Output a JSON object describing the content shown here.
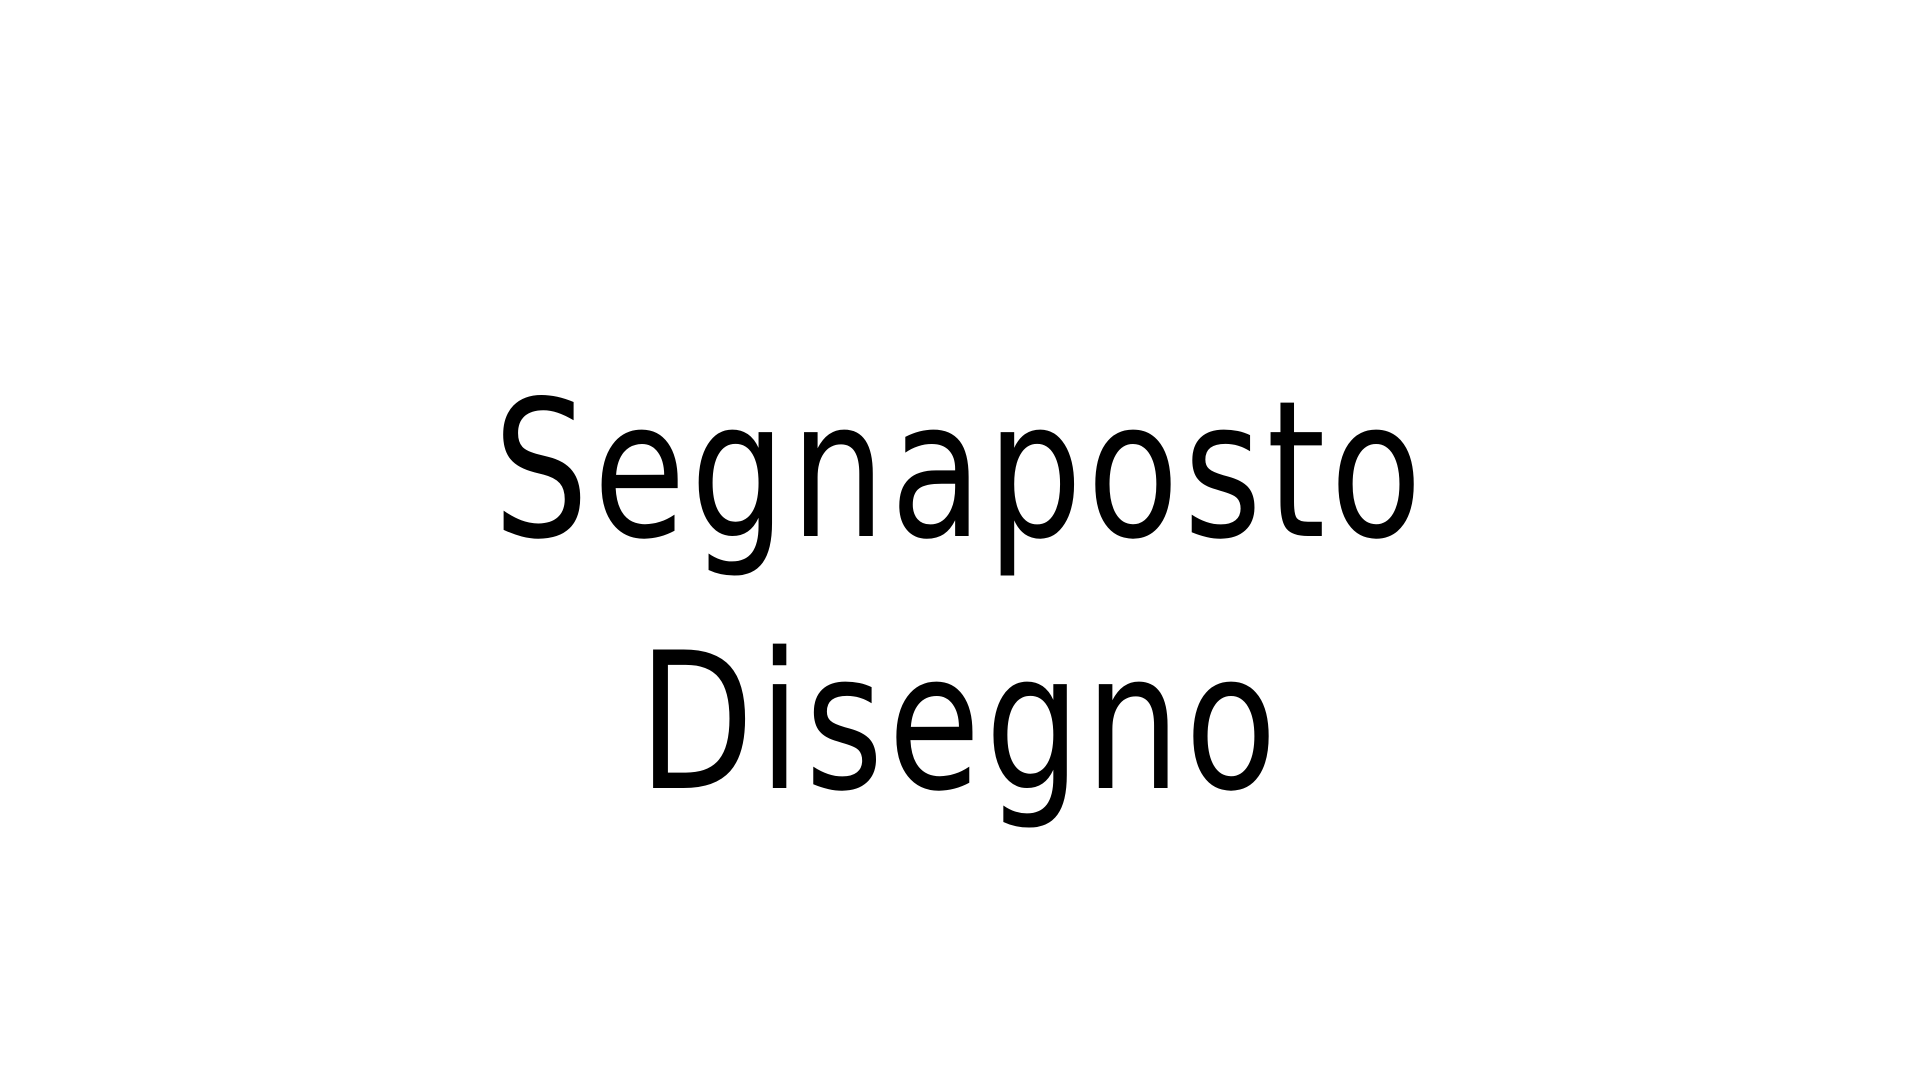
{
  "slide": {
    "placeholder_line_1": "Segnaposto",
    "placeholder_line_2": "Disegno"
  },
  "colors": {
    "background": "#ffffff",
    "text": "#000000"
  }
}
